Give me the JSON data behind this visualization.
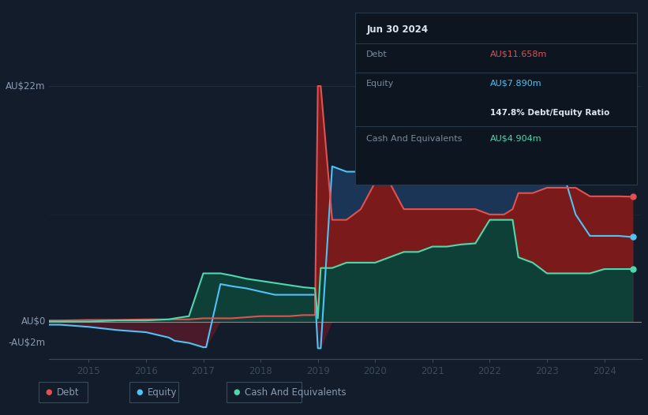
{
  "bg_color": "#131c2b",
  "plot_bg_color": "#131c2b",
  "debt_color": "#e05252",
  "equity_color": "#4fc3f7",
  "cash_color": "#4dd9ac",
  "debt_fill": "#7a1a1a",
  "equity_fill": "#1a3555",
  "cash_fill": "#0f4038",
  "grid_color": "#2a3a4a",
  "text_color": "#8a9ab0",
  "ylim": [
    -3.5,
    25
  ],
  "xticks": [
    2015,
    2016,
    2017,
    2018,
    2019,
    2020,
    2021,
    2022,
    2023,
    2024
  ],
  "tooltip_title": "Jun 30 2024",
  "tooltip_debt_label": "Debt",
  "tooltip_debt_value": "AU$11.658m",
  "tooltip_equity_label": "Equity",
  "tooltip_equity_value": "AU$7.890m",
  "tooltip_ratio": "147.8% Debt/Equity Ratio",
  "tooltip_cash_label": "Cash And Equivalents",
  "tooltip_cash_value": "AU$4.904m",
  "time": [
    2014.3,
    2014.5,
    2015.0,
    2015.5,
    2016.0,
    2016.4,
    2016.5,
    2016.75,
    2017.0,
    2017.05,
    2017.3,
    2017.5,
    2017.75,
    2018.0,
    2018.25,
    2018.5,
    2018.75,
    2018.95,
    2019.0,
    2019.05,
    2019.25,
    2019.5,
    2019.75,
    2020.0,
    2020.25,
    2020.5,
    2020.75,
    2021.0,
    2021.25,
    2021.5,
    2021.75,
    2022.0,
    2022.25,
    2022.4,
    2022.5,
    2022.75,
    2023.0,
    2023.25,
    2023.5,
    2023.75,
    2024.0,
    2024.25,
    2024.5
  ],
  "debt": [
    0.1,
    0.1,
    0.15,
    0.15,
    0.2,
    0.2,
    0.2,
    0.2,
    0.3,
    0.3,
    0.3,
    0.3,
    0.4,
    0.5,
    0.5,
    0.5,
    0.6,
    0.6,
    22.0,
    22.0,
    9.5,
    9.5,
    10.5,
    13.0,
    13.0,
    10.5,
    10.5,
    10.5,
    10.5,
    10.5,
    10.5,
    10.0,
    10.0,
    10.5,
    12.0,
    12.0,
    12.5,
    12.5,
    12.5,
    11.7,
    11.7,
    11.7,
    11.658
  ],
  "equity": [
    -0.3,
    -0.3,
    -0.5,
    -0.8,
    -1.0,
    -1.5,
    -1.8,
    -2.0,
    -2.4,
    -2.4,
    3.5,
    3.3,
    3.1,
    2.8,
    2.5,
    2.5,
    2.5,
    2.5,
    -2.5,
    -2.5,
    14.5,
    14.0,
    14.0,
    17.5,
    14.0,
    13.5,
    13.5,
    13.5,
    13.5,
    14.0,
    16.5,
    18.5,
    18.5,
    18.5,
    18.5,
    17.0,
    17.0,
    14.5,
    10.0,
    8.0,
    8.0,
    8.0,
    7.89
  ],
  "cash": [
    0.0,
    0.0,
    0.0,
    0.1,
    0.1,
    0.2,
    0.3,
    0.5,
    4.5,
    4.5,
    4.5,
    4.3,
    4.0,
    3.8,
    3.6,
    3.4,
    3.2,
    3.1,
    0.3,
    5.0,
    5.0,
    5.5,
    5.5,
    5.5,
    6.0,
    6.5,
    6.5,
    7.0,
    7.0,
    7.2,
    7.3,
    9.5,
    9.5,
    9.5,
    6.0,
    5.5,
    4.5,
    4.5,
    4.5,
    4.5,
    4.9,
    4.9,
    4.904
  ]
}
